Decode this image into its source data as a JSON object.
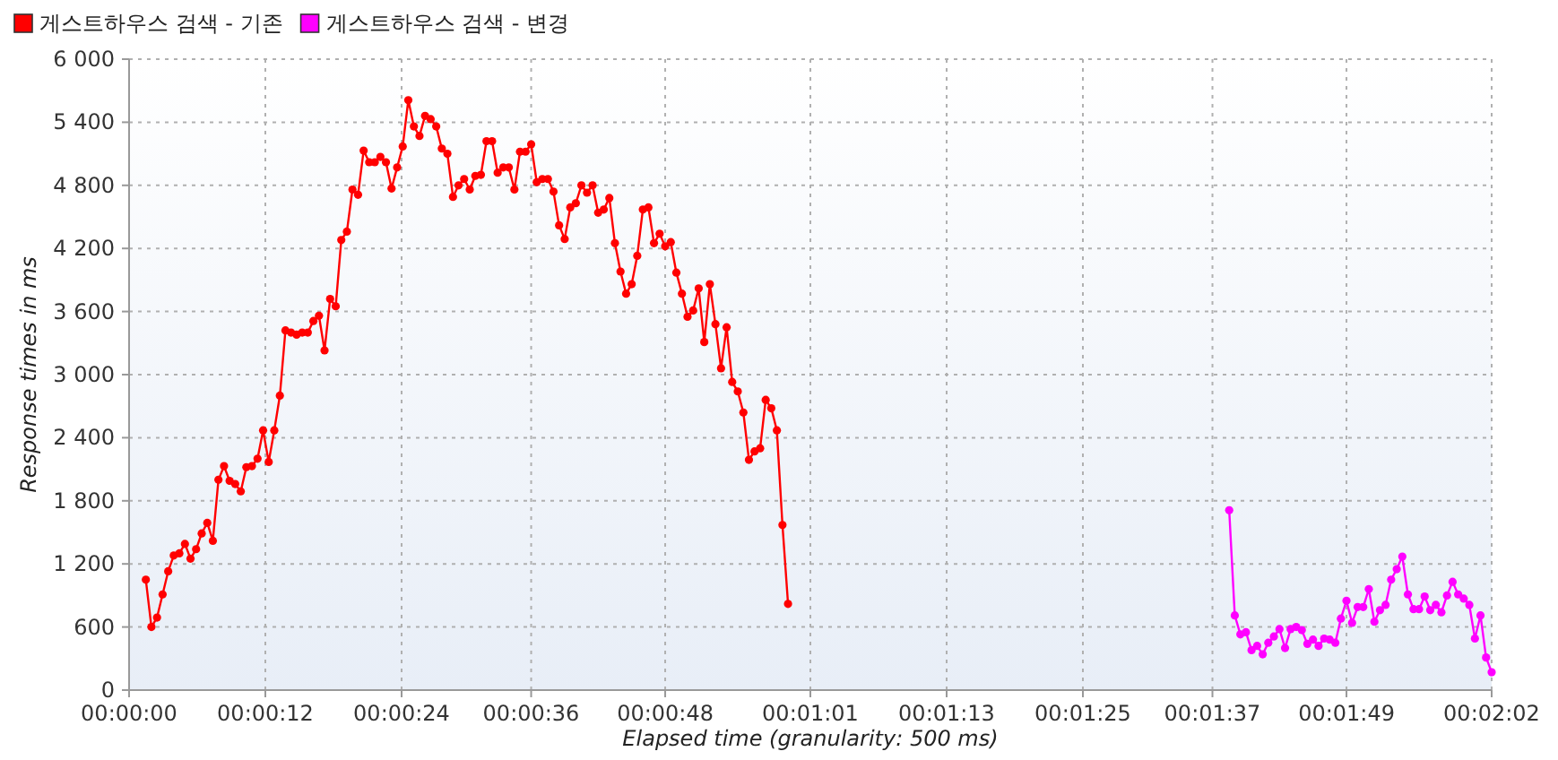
{
  "chart_data": {
    "type": "line",
    "xlabel": "Elapsed time (granularity: 500 ms)",
    "ylabel": "Response times in ms",
    "xlim": [
      0,
      122
    ],
    "ylim": [
      0,
      6000
    ],
    "xticks": [
      {
        "value": 0,
        "label": "00:00:00"
      },
      {
        "value": 12.2,
        "label": "00:00:12"
      },
      {
        "value": 24.4,
        "label": "00:00:24"
      },
      {
        "value": 36,
        "label": "00:00:36"
      },
      {
        "value": 48,
        "label": "00:00:48"
      },
      {
        "value": 61,
        "label": "00:01:01"
      },
      {
        "value": 73.2,
        "label": "00:01:13"
      },
      {
        "value": 85.4,
        "label": "00:01:25"
      },
      {
        "value": 97,
        "label": "00:01:37"
      },
      {
        "value": 109,
        "label": "00:01:49"
      },
      {
        "value": 122,
        "label": "00:02:02"
      }
    ],
    "yticks": [
      0,
      600,
      {
        "value": 1200,
        "label": "1 200"
      },
      {
        "value": 1800,
        "label": "1 800"
      },
      {
        "value": 2400,
        "label": "2 400"
      },
      {
        "value": 3000,
        "label": "3 000"
      },
      {
        "value": 3600,
        "label": "3 600"
      },
      {
        "value": 4200,
        "label": "4 200"
      },
      {
        "value": 4800,
        "label": "4 800"
      },
      {
        "value": 5400,
        "label": "5 400"
      },
      {
        "value": 6000,
        "label": "6 000"
      }
    ],
    "grid": true,
    "legend": "top left",
    "marker": "circle",
    "series": [
      {
        "name": "게스트하우스 검색 - 기존",
        "color": "#ff0000",
        "x": [
          1.5,
          2,
          2.5,
          3,
          3.5,
          4,
          4.5,
          5,
          5.5,
          6,
          6.5,
          7,
          7.5,
          8,
          8.5,
          9,
          9.5,
          10,
          10.5,
          11,
          11.5,
          12,
          12.5,
          13,
          13.5,
          14,
          14.5,
          15,
          15.5,
          16,
          16.5,
          17,
          17.5,
          18,
          18.5,
          19,
          19.5,
          20,
          20.5,
          21,
          21.5,
          22,
          22.5,
          23,
          23.5,
          24,
          24.5,
          25,
          25.5,
          26,
          26.5,
          27,
          27.5,
          28,
          28.5,
          29,
          29.5,
          30,
          30.5,
          31,
          31.5,
          32,
          32.5,
          33,
          33.5,
          34,
          34.5,
          35,
          35.5,
          36,
          36.5,
          37,
          37.5,
          38,
          38.5,
          39,
          39.5,
          40,
          40.5,
          41,
          41.5,
          42,
          42.5,
          43,
          43.5,
          44,
          44.5,
          45,
          45.5,
          46,
          46.5,
          47,
          47.5,
          48,
          48.5,
          49,
          49.5,
          50,
          50.5,
          51,
          51.5,
          52,
          52.5,
          53,
          53.5,
          54,
          54.5,
          55,
          55.5,
          56,
          56.5,
          57,
          57.5,
          58,
          58.5,
          59
        ],
        "values": [
          1050,
          600,
          690,
          910,
          1130,
          1280,
          1300,
          1390,
          1250,
          1340,
          1490,
          1590,
          1420,
          2000,
          2130,
          1990,
          1960,
          1890,
          2120,
          2130,
          2200,
          2470,
          2170,
          2470,
          2800,
          3420,
          3400,
          3380,
          3400,
          3400,
          3510,
          3560,
          3230,
          3720,
          3650,
          4280,
          4360,
          4760,
          4710,
          5130,
          5020,
          5020,
          5070,
          5020,
          4770,
          4970,
          5170,
          5610,
          5360,
          5270,
          5460,
          5430,
          5360,
          5150,
          5100,
          4690,
          4800,
          4860,
          4760,
          4890,
          4900,
          5220,
          5220,
          4920,
          4970,
          4970,
          4760,
          5120,
          5120,
          5190,
          4830,
          4860,
          4860,
          4740,
          4420,
          4290,
          4590,
          4630,
          4800,
          4730,
          4800,
          4540,
          4570,
          4680,
          4250,
          3980,
          3770,
          3860,
          4130,
          4570,
          4590,
          4250,
          4340,
          4220,
          4260,
          3970,
          3770,
          3550,
          3610,
          3820,
          3310,
          3860,
          3480,
          3060,
          3450,
          2930,
          2840,
          2640,
          2190,
          2270,
          2300,
          2760,
          2680,
          2470,
          1570,
          820
        ]
      },
      {
        "name": "게스트하우스 검색 - 변경",
        "color": "#ff00ff",
        "x": [
          98.5,
          99,
          99.5,
          100,
          100.5,
          101,
          101.5,
          102,
          102.5,
          103,
          103.5,
          104,
          104.5,
          105,
          105.5,
          106,
          106.5,
          107,
          107.5,
          108,
          108.5,
          109,
          109.5,
          110,
          110.5,
          111,
          111.5,
          112,
          112.5,
          113,
          113.5,
          114,
          114.5,
          115,
          115.5,
          116,
          116.5,
          117,
          117.5,
          118,
          118.5,
          119,
          119.5,
          120,
          120.5,
          121,
          121.5,
          122
        ],
        "values": [
          1710,
          710,
          530,
          550,
          380,
          420,
          340,
          450,
          510,
          580,
          400,
          580,
          600,
          570,
          440,
          480,
          420,
          490,
          480,
          450,
          680,
          850,
          640,
          790,
          790,
          960,
          650,
          760,
          810,
          1050,
          1150,
          1270,
          910,
          770,
          770,
          890,
          760,
          810,
          740,
          900,
          1030,
          910,
          870,
          810,
          490,
          710,
          310,
          170
        ]
      }
    ]
  }
}
